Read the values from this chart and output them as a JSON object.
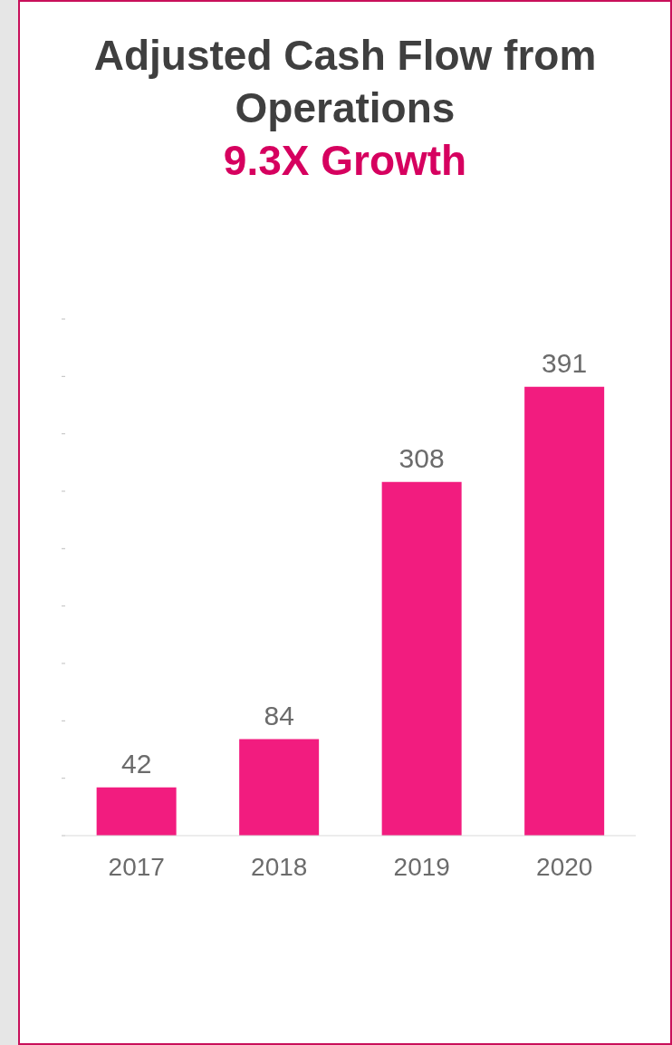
{
  "chart_data": {
    "type": "bar",
    "title": "Adjusted Cash Flow from Operations",
    "subtitle": "9.3X Growth",
    "categories": [
      "2017",
      "2018",
      "2019",
      "2020"
    ],
    "values": [
      42,
      84,
      308,
      391
    ],
    "color": "#f21c7f",
    "yticks": [
      {
        "value": 0,
        "label": null
      },
      {
        "value": 50,
        "label": null
      },
      {
        "value": 100,
        "label": null
      },
      {
        "value": 150,
        "label": null
      },
      {
        "value": 200,
        "label": null
      },
      {
        "value": 250,
        "label": null
      },
      {
        "value": 300,
        "label": null
      },
      {
        "value": 350,
        "label": null
      },
      {
        "value": 400,
        "label": null
      },
      {
        "value": 450,
        "label": null
      }
    ],
    "data_labels": true
  }
}
